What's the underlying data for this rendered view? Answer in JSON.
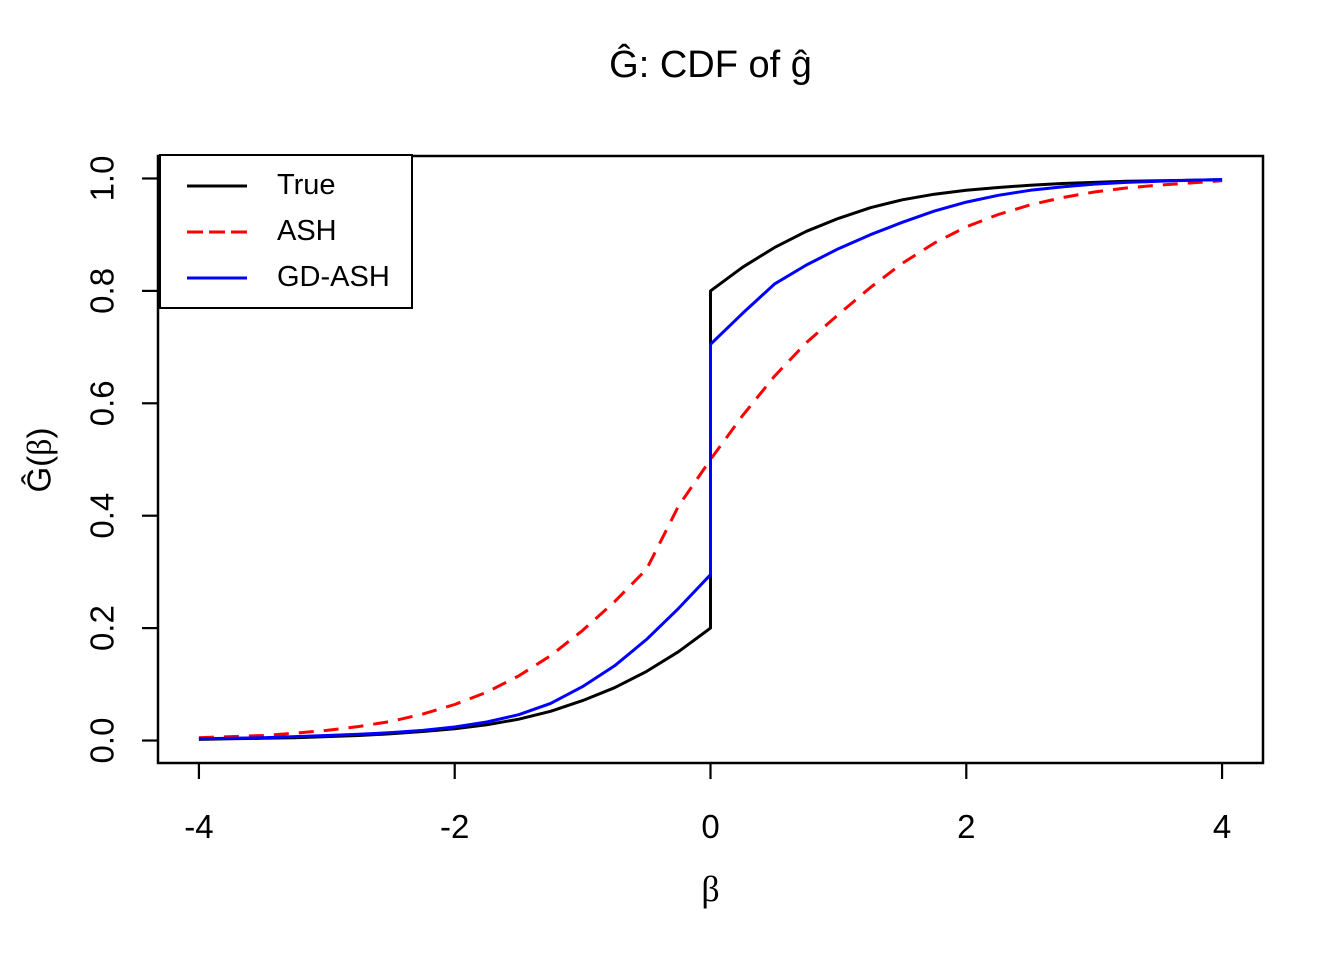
{
  "labels": {
    "ylabel_pre": "Ĝ(",
    "ylabel_beta": "β",
    "ylabel_post": ")"
  },
  "chart_data": {
    "type": "line",
    "title": "Ĝ: CDF of ĝ",
    "xlabel": "β",
    "ylabel": "Ĝ(β)",
    "xlim": [
      -4.32,
      4.32
    ],
    "ylim": [
      -0.04,
      1.04
    ],
    "x_range_data": [
      -4,
      4
    ],
    "y_range_data": [
      0,
      1
    ],
    "grid": false,
    "legend_position": "top-left",
    "x_ticks": [
      {
        "value": -4,
        "label": "-4"
      },
      {
        "value": -2,
        "label": "-2"
      },
      {
        "value": 0,
        "label": "0"
      },
      {
        "value": 2,
        "label": "2"
      },
      {
        "value": 4,
        "label": "4"
      }
    ],
    "y_ticks": [
      {
        "value": 0.0,
        "label": "0.0"
      },
      {
        "value": 0.2,
        "label": "0.2"
      },
      {
        "value": 0.4,
        "label": "0.4"
      },
      {
        "value": 0.6,
        "label": "0.6"
      },
      {
        "value": 0.8,
        "label": "0.8"
      },
      {
        "value": 1.0,
        "label": "1.0"
      }
    ],
    "series": [
      {
        "name": "True",
        "color": "#000000",
        "style": "solid",
        "jump_at_zero": [
          0.2,
          0.8
        ],
        "points": [
          [
            -4,
            0.002
          ],
          [
            -3.75,
            0.003
          ],
          [
            -3.5,
            0.004
          ],
          [
            -3.25,
            0.005
          ],
          [
            -3,
            0.007
          ],
          [
            -2.75,
            0.009
          ],
          [
            -2.5,
            0.012
          ],
          [
            -2.25,
            0.016
          ],
          [
            -2,
            0.021
          ],
          [
            -1.75,
            0.028
          ],
          [
            -1.5,
            0.038
          ],
          [
            -1.25,
            0.052
          ],
          [
            -1,
            0.071
          ],
          [
            -0.75,
            0.094
          ],
          [
            -0.5,
            0.123
          ],
          [
            -0.25,
            0.158
          ],
          [
            0,
            0.2
          ],
          [
            0,
            0.8
          ],
          [
            0.25,
            0.842
          ],
          [
            0.5,
            0.877
          ],
          [
            0.75,
            0.906
          ],
          [
            1,
            0.929
          ],
          [
            1.25,
            0.948
          ],
          [
            1.5,
            0.962
          ],
          [
            1.75,
            0.972
          ],
          [
            2,
            0.979
          ],
          [
            2.25,
            0.984
          ],
          [
            2.5,
            0.988
          ],
          [
            2.75,
            0.991
          ],
          [
            3,
            0.993
          ],
          [
            3.25,
            0.995
          ],
          [
            3.5,
            0.996
          ],
          [
            3.75,
            0.997
          ],
          [
            4,
            0.998
          ]
        ]
      },
      {
        "name": "ASH",
        "color": "#FF0000",
        "style": "dashed",
        "jump_at_zero": null,
        "points": [
          [
            -4,
            0.005
          ],
          [
            -3.75,
            0.007
          ],
          [
            -3.5,
            0.009
          ],
          [
            -3.25,
            0.013
          ],
          [
            -3,
            0.018
          ],
          [
            -2.75,
            0.025
          ],
          [
            -2.5,
            0.034
          ],
          [
            -2.25,
            0.047
          ],
          [
            -2,
            0.064
          ],
          [
            -1.75,
            0.086
          ],
          [
            -1.5,
            0.115
          ],
          [
            -1.25,
            0.151
          ],
          [
            -1,
            0.196
          ],
          [
            -0.75,
            0.247
          ],
          [
            -0.5,
            0.305
          ],
          [
            -0.25,
            0.417
          ],
          [
            0,
            0.5
          ],
          [
            0.25,
            0.578
          ],
          [
            0.5,
            0.648
          ],
          [
            0.75,
            0.708
          ],
          [
            1,
            0.758
          ],
          [
            1.25,
            0.806
          ],
          [
            1.5,
            0.849
          ],
          [
            1.75,
            0.885
          ],
          [
            2,
            0.914
          ],
          [
            2.25,
            0.936
          ],
          [
            2.5,
            0.953
          ],
          [
            2.75,
            0.966
          ],
          [
            3,
            0.976
          ],
          [
            3.25,
            0.983
          ],
          [
            3.5,
            0.988
          ],
          [
            3.75,
            0.992
          ],
          [
            4,
            0.996
          ]
        ]
      },
      {
        "name": "GD-ASH",
        "color": "#0000FF",
        "style": "solid",
        "jump_at_zero": [
          0.295,
          0.705
        ],
        "points": [
          [
            -4,
            0.003
          ],
          [
            -3.75,
            0.004
          ],
          [
            -3.5,
            0.005
          ],
          [
            -3.25,
            0.007
          ],
          [
            -3,
            0.009
          ],
          [
            -2.75,
            0.011
          ],
          [
            -2.5,
            0.014
          ],
          [
            -2.25,
            0.018
          ],
          [
            -2,
            0.024
          ],
          [
            -1.75,
            0.033
          ],
          [
            -1.5,
            0.046
          ],
          [
            -1.25,
            0.066
          ],
          [
            -1,
            0.096
          ],
          [
            -0.75,
            0.133
          ],
          [
            -0.5,
            0.18
          ],
          [
            -0.25,
            0.235
          ],
          [
            0,
            0.295
          ],
          [
            0,
            0.705
          ],
          [
            0.25,
            0.76
          ],
          [
            0.5,
            0.812
          ],
          [
            0.75,
            0.846
          ],
          [
            1,
            0.875
          ],
          [
            1.25,
            0.9
          ],
          [
            1.5,
            0.922
          ],
          [
            1.75,
            0.942
          ],
          [
            2,
            0.958
          ],
          [
            2.25,
            0.97
          ],
          [
            2.5,
            0.979
          ],
          [
            2.75,
            0.985
          ],
          [
            3,
            0.99
          ],
          [
            3.25,
            0.993
          ],
          [
            3.5,
            0.995
          ],
          [
            3.75,
            0.997
          ],
          [
            4,
            0.998
          ]
        ]
      }
    ]
  }
}
